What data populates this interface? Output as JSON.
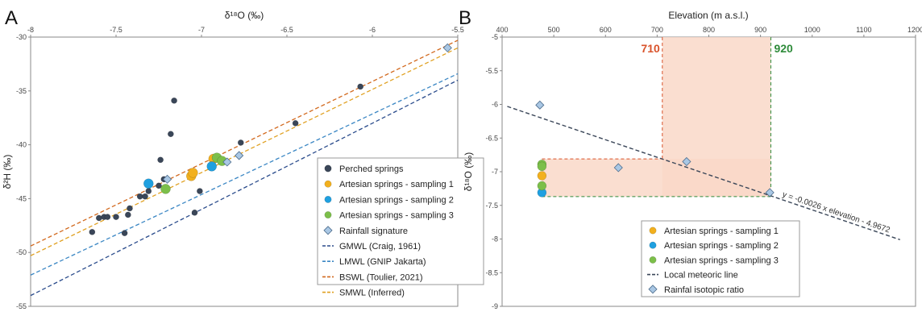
{
  "figure": {
    "panel_a_letter": "A",
    "panel_b_letter": "B"
  },
  "chart_data": [
    {
      "type": "scatter",
      "panel": "A",
      "xlabel": "δ¹⁸O (‰)",
      "ylabel": "δ²H (‰)",
      "xlim": [
        -8,
        -5.5
      ],
      "ylim": [
        -55,
        -30
      ],
      "xticks": [
        -8,
        -7.5,
        -7,
        -6.5,
        -6,
        -5.5
      ],
      "xtick_labels": [
        "-8",
        "-7.5",
        "-7",
        "-6.5",
        "-6",
        "-5.5"
      ],
      "yticks": [
        -30,
        -35,
        -40,
        -45,
        -50,
        -55
      ],
      "ytick_labels": [
        "-30",
        "-35",
        "-40",
        "-45",
        "-50",
        "-55"
      ],
      "x_axis_position": "top",
      "grid": false,
      "legend_position": "bottom-right",
      "lines": [
        {
          "name": "GMWL (Craig, 1961)",
          "color": "#2b4c8c",
          "x": [
            -8,
            -5.5
          ],
          "y": [
            -54,
            -34
          ]
        },
        {
          "name": "LMWL (GNIP Jakarta)",
          "color": "#3b87c4",
          "x": [
            -8,
            -5.5
          ],
          "y": [
            -52.1,
            -33.4
          ]
        },
        {
          "name": "BSWL (Toulier, 2021)",
          "color": "#d2691e",
          "x": [
            -8,
            -5.5
          ],
          "y": [
            -49.4,
            -30.3
          ]
        },
        {
          "name": "SMWL (Inferred)",
          "color": "#e0a020",
          "x": [
            -8,
            -5.5
          ],
          "y": [
            -50.3,
            -31
          ]
        }
      ],
      "series": [
        {
          "name": "Perched springs",
          "marker": "circle",
          "color": "#3a4658",
          "x": [
            -7.64,
            -7.6,
            -7.57,
            -7.55,
            -7.5,
            -7.45,
            -7.43,
            -7.42,
            -7.36,
            -7.33,
            -7.31,
            -7.25,
            -7.24,
            -7.22,
            -7.18,
            -7.16,
            -7.04,
            -7.01,
            -6.77,
            -6.45,
            -6.07
          ],
          "y": [
            -48.1,
            -46.8,
            -46.7,
            -46.7,
            -46.7,
            -48.2,
            -46.5,
            -45.9,
            -44.8,
            -44.8,
            -44.3,
            -43.8,
            -41.4,
            -43.2,
            -39,
            -35.9,
            -46.3,
            -44.3,
            -39.8,
            -38,
            -34.6
          ]
        },
        {
          "name": "Artesian springs - sampling 1",
          "marker": "circle",
          "color": "#f2b01e",
          "x": [
            -7.06,
            -7.05,
            -6.93
          ],
          "y": [
            -42.9,
            -42.6,
            -41.3
          ]
        },
        {
          "name": "Artesian springs - sampling 2",
          "marker": "circle",
          "color": "#1fa0e0",
          "x": [
            -7.31,
            -6.94
          ],
          "y": [
            -43.6,
            -42
          ]
        },
        {
          "name": "Artesian springs - sampling 3",
          "marker": "circle",
          "color": "#7cbf4a",
          "x": [
            -7.21,
            -6.91,
            -6.88
          ],
          "y": [
            -44.1,
            -41.2,
            -41.5
          ]
        },
        {
          "name": "Rainfall signature",
          "marker": "diamond",
          "color": "#a9c7e4",
          "x": [
            -7.2,
            -6.85,
            -6.78,
            -5.56
          ],
          "y": [
            -43.2,
            -41.6,
            -41,
            -31
          ]
        }
      ]
    },
    {
      "type": "scatter",
      "panel": "B",
      "xlabel": "Elevation (m a.s.l.)",
      "ylabel": "δ¹⁸O (‰)",
      "xlim": [
        400,
        1200
      ],
      "ylim": [
        -9,
        -5
      ],
      "xticks": [
        400,
        500,
        600,
        700,
        800,
        900,
        1000,
        1100,
        1200
      ],
      "xtick_labels": [
        "400",
        "500",
        "600",
        "700",
        "800",
        "900",
        "1000",
        "1100",
        "1200"
      ],
      "yticks": [
        -5,
        -5.5,
        -6,
        -6.5,
        -7,
        -7.5,
        -8,
        -8.5,
        -9
      ],
      "ytick_labels": [
        "-5",
        "-5.5",
        "-6",
        "-6.5",
        "-7",
        "-7.5",
        "-8",
        "-8.5",
        "-9"
      ],
      "x_axis_position": "top",
      "grid": false,
      "legend_position": "bottom-center",
      "meteoric_line": {
        "name": "Local meteoric line",
        "color": "#3a4658",
        "x": [
          410,
          1170
        ],
        "y": [
          -6.03,
          -8.01
        ]
      },
      "equation": "y = -0.0026 x elevation - 4.9672",
      "elevation_lower": 710,
      "elevation_upper": 920,
      "lower_label": "710",
      "upper_label": "920",
      "lower_color": "#d9532b",
      "upper_color": "#2e8b3a",
      "shaded_band_o18": [
        -7.37,
        -6.81
      ],
      "series": [
        {
          "name": "Artesian springs - sampling 1",
          "marker": "circle",
          "color": "#f2b01e",
          "x": [
            477
          ],
          "y": [
            -7.06
          ]
        },
        {
          "name": "Artesian springs - sampling 2",
          "marker": "circle",
          "color": "#1fa0e0",
          "x": [
            477
          ],
          "y": [
            -7.31
          ]
        },
        {
          "name": "Artesian springs - sampling 3",
          "marker": "circle",
          "color": "#7cbf4a",
          "x": [
            477,
            477,
            477
          ],
          "y": [
            -6.89,
            -6.92,
            -7.21
          ]
        },
        {
          "name": "Rainfal isotopic ratio",
          "marker": "diamond",
          "color": "#a9c7e4",
          "x": [
            473,
            625,
            757,
            918
          ],
          "y": [
            -6.01,
            -6.94,
            -6.85,
            -7.31
          ]
        }
      ],
      "legend_order": [
        "Artesian springs - sampling 1",
        "Artesian springs - sampling 2",
        "Artesian springs - sampling 3",
        "Local meteoric line",
        "Rainfal isotopic ratio"
      ]
    }
  ]
}
